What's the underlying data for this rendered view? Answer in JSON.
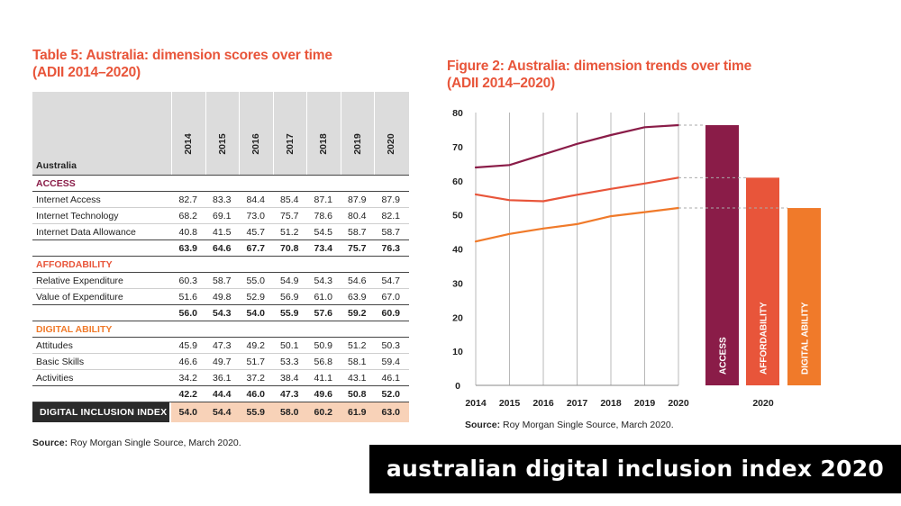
{
  "table": {
    "title_line1": "Table 5: Australia: dimension scores over time",
    "title_line2": "(ADII 2014–2020)",
    "country": "Australia",
    "years": [
      "2014",
      "2015",
      "2016",
      "2017",
      "2018",
      "2019",
      "2020"
    ],
    "sections": [
      {
        "name": "ACCESS",
        "items": [
          {
            "label": "Internet Access",
            "values": [
              "82.7",
              "83.3",
              "84.4",
              "85.4",
              "87.1",
              "87.9",
              "87.9"
            ]
          },
          {
            "label": "Internet Technology",
            "values": [
              "68.2",
              "69.1",
              "73.0",
              "75.7",
              "78.6",
              "80.4",
              "82.1"
            ]
          },
          {
            "label": "Internet Data Allowance",
            "values": [
              "40.8",
              "41.5",
              "45.7",
              "51.2",
              "54.5",
              "58.7",
              "58.7"
            ]
          }
        ],
        "subtotal": [
          "63.9",
          "64.6",
          "67.7",
          "70.8",
          "73.4",
          "75.7",
          "76.3"
        ]
      },
      {
        "name": "AFFORDABILITY",
        "items": [
          {
            "label": "Relative Expenditure",
            "values": [
              "60.3",
              "58.7",
              "55.0",
              "54.9",
              "54.3",
              "54.6",
              "54.7"
            ]
          },
          {
            "label": "Value of Expenditure",
            "values": [
              "51.6",
              "49.8",
              "52.9",
              "56.9",
              "61.0",
              "63.9",
              "67.0"
            ]
          }
        ],
        "subtotal": [
          "56.0",
          "54.3",
          "54.0",
          "55.9",
          "57.6",
          "59.2",
          "60.9"
        ]
      },
      {
        "name": "DIGITAL ABILITY",
        "items": [
          {
            "label": "Attitudes",
            "values": [
              "45.9",
              "47.3",
              "49.2",
              "50.1",
              "50.9",
              "51.2",
              "50.3"
            ]
          },
          {
            "label": "Basic Skills",
            "values": [
              "46.6",
              "49.7",
              "51.7",
              "53.3",
              "56.8",
              "58.1",
              "59.4"
            ]
          },
          {
            "label": "Activities",
            "values": [
              "34.2",
              "36.1",
              "37.2",
              "38.4",
              "41.1",
              "43.1",
              "46.1"
            ]
          }
        ],
        "subtotal": [
          "42.2",
          "44.4",
          "46.0",
          "47.3",
          "49.6",
          "50.8",
          "52.0"
        ]
      }
    ],
    "index": {
      "label": "DIGITAL INCLUSION INDEX",
      "values": [
        "54.0",
        "54.4",
        "55.9",
        "58.0",
        "60.2",
        "61.9",
        "63.0"
      ]
    },
    "source_bold": "Source:",
    "source_text": " Roy Morgan Single Source, March 2020."
  },
  "figure": {
    "title_line1": "Figure 2: Australia: dimension  trends over time",
    "title_line2": "(ADII 2014–2020)",
    "source_bold": "Source:",
    "source_text": " Roy Morgan Single Source, March 2020."
  },
  "chart_data": {
    "type": "line",
    "title": "Figure 2: Australia: dimension  trends over time (ADII 2014–2020)",
    "x": [
      "2014",
      "2015",
      "2016",
      "2017",
      "2018",
      "2019",
      "2020"
    ],
    "ylim": [
      0,
      80
    ],
    "yticks": [
      "0",
      "10",
      "20",
      "30",
      "40",
      "50",
      "60",
      "70",
      "80"
    ],
    "grid": "vertical",
    "series": [
      {
        "values": [
          63.9,
          64.6,
          67.7,
          70.8,
          73.4,
          75.7,
          76.3
        ],
        "color": "#8a1c48"
      },
      {
        "values": [
          56.0,
          54.3,
          54.0,
          55.9,
          57.6,
          59.2,
          60.9
        ],
        "color": "#e8553a"
      },
      {
        "values": [
          42.2,
          44.4,
          46.0,
          47.3,
          49.6,
          50.8,
          52.0
        ],
        "color": "#f07a2a"
      }
    ],
    "bars": {
      "category": "2020",
      "items": [
        {
          "label": "ACCESS",
          "value": 76.3,
          "color": "#8a1c48"
        },
        {
          "label": "AFFORDABILITY",
          "value": 60.9,
          "color": "#e8553a"
        },
        {
          "label": "DIGITAL ABILITY",
          "value": 52.0,
          "color": "#f07a2a"
        }
      ]
    }
  },
  "banner": {
    "text": "australian digital inclusion index 2020"
  }
}
